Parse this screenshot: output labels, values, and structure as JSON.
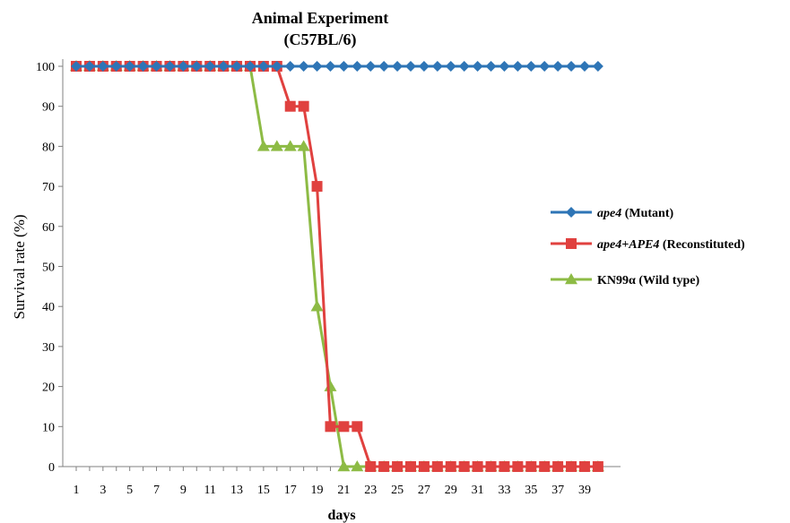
{
  "chart_data": {
    "type": "line",
    "title": "Animal Experiment",
    "subtitle": "(C57BL/6)",
    "xlabel": "days",
    "ylabel": "Survival rate (%)",
    "ylim": [
      0,
      100
    ],
    "xlim": [
      1,
      40
    ],
    "y_ticks": [
      "0",
      "10",
      "20",
      "30",
      "40",
      "50",
      "60",
      "70",
      "80",
      "90",
      "100"
    ],
    "x_ticks": [
      "1",
      "3",
      "5",
      "7",
      "9",
      "11",
      "13",
      "15",
      "17",
      "19",
      "21",
      "23",
      "25",
      "27",
      "29",
      "31",
      "33",
      "35",
      "37",
      "39"
    ],
    "grid": false,
    "legend_position": "right",
    "x": [
      1,
      2,
      3,
      4,
      5,
      6,
      7,
      8,
      9,
      10,
      11,
      12,
      13,
      14,
      15,
      16,
      17,
      18,
      19,
      20,
      21,
      22,
      23,
      24,
      25,
      26,
      27,
      28,
      29,
      30,
      31,
      32,
      33,
      34,
      35,
      36,
      37,
      38,
      39,
      40
    ],
    "series": [
      {
        "legend_italic": "ape4",
        "legend_rest": " (Mutant)",
        "color": "#2e75b6",
        "marker": "diamond",
        "values": [
          100,
          100,
          100,
          100,
          100,
          100,
          100,
          100,
          100,
          100,
          100,
          100,
          100,
          100,
          100,
          100,
          100,
          100,
          100,
          100,
          100,
          100,
          100,
          100,
          100,
          100,
          100,
          100,
          100,
          100,
          100,
          100,
          100,
          100,
          100,
          100,
          100,
          100,
          100,
          100
        ]
      },
      {
        "legend_italic": "ape4+APE4",
        "legend_rest": " (Reconstituted)",
        "color": "#e0413f",
        "marker": "square",
        "values": [
          100,
          100,
          100,
          100,
          100,
          100,
          100,
          100,
          100,
          100,
          100,
          100,
          100,
          100,
          100,
          100,
          90,
          90,
          70,
          10,
          10,
          10,
          0,
          0,
          0,
          0,
          0,
          0,
          0,
          0,
          0,
          0,
          0,
          0,
          0,
          0,
          0,
          0,
          0,
          0
        ]
      },
      {
        "legend_italic": "",
        "legend_rest": "KN99α (Wild type)",
        "color": "#8dbb45",
        "marker": "triangle",
        "values": [
          100,
          100,
          100,
          100,
          100,
          100,
          100,
          100,
          100,
          100,
          100,
          100,
          100,
          100,
          80,
          80,
          80,
          80,
          40,
          20,
          0,
          0,
          0,
          0,
          0,
          0,
          0,
          0,
          0,
          0,
          0,
          0,
          0,
          0,
          0,
          0,
          0,
          0,
          0,
          0
        ]
      }
    ]
  }
}
